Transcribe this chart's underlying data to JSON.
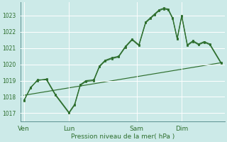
{
  "xlabel": "Pression niveau de la mer( hPa )",
  "bg_color": "#cceae8",
  "grid_color": "#ffffff",
  "line_color": "#2d6e2d",
  "ylim": [
    1016.5,
    1023.8
  ],
  "yticks": [
    1017,
    1018,
    1019,
    1020,
    1021,
    1022,
    1023
  ],
  "xtick_labels": [
    "Ven",
    "Lun",
    "Sam",
    "Dim"
  ],
  "xtick_positions": [
    0,
    40,
    100,
    140
  ],
  "xmax": 175,
  "line1_x": [
    0,
    6,
    12,
    20,
    28,
    40,
    45,
    50,
    55,
    62,
    67,
    72,
    78,
    84,
    90,
    96,
    102,
    108,
    112,
    116,
    120,
    124,
    128,
    132,
    136,
    140,
    145,
    150,
    155,
    160,
    165,
    175
  ],
  "line1_y": [
    1017.8,
    1018.55,
    1019.05,
    1019.05,
    1018.1,
    1017.0,
    1017.5,
    1018.7,
    1018.95,
    1019.0,
    1019.85,
    1020.2,
    1020.35,
    1020.45,
    1021.05,
    1021.5,
    1021.15,
    1022.55,
    1022.8,
    1023.05,
    1023.3,
    1023.4,
    1023.35,
    1022.8,
    1021.55,
    1022.95,
    1021.15,
    1021.4,
    1021.2,
    1021.35,
    1021.2,
    1020.05
  ],
  "line2_x": [
    0,
    6,
    12,
    20,
    28,
    40,
    45,
    50,
    55,
    62,
    67,
    72,
    78,
    84,
    90,
    96,
    102,
    108,
    112,
    116,
    120,
    124,
    128,
    132,
    136,
    140,
    145,
    150,
    155,
    160,
    165,
    175
  ],
  "line2_y": [
    1017.75,
    1018.6,
    1019.0,
    1019.1,
    1018.15,
    1017.05,
    1017.55,
    1018.75,
    1019.0,
    1019.05,
    1019.9,
    1020.25,
    1020.4,
    1020.5,
    1021.1,
    1021.55,
    1021.2,
    1022.6,
    1022.85,
    1023.1,
    1023.35,
    1023.45,
    1023.4,
    1022.85,
    1021.6,
    1023.0,
    1021.2,
    1021.45,
    1021.25,
    1021.4,
    1021.25,
    1020.1
  ],
  "line3_x": [
    0,
    175
  ],
  "line3_y": [
    1018.1,
    1020.1
  ]
}
